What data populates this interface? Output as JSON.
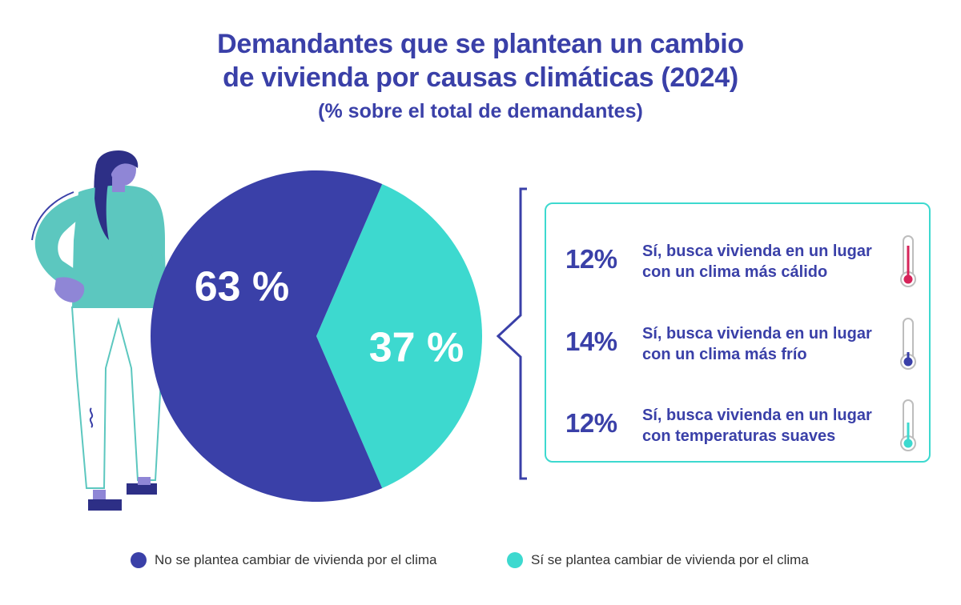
{
  "title_lines": [
    "Demandantes que se plantean un cambio",
    "de vivienda por causas climáticas (2024)"
  ],
  "subtitle": "(% sobre el total de demandantes)",
  "colors": {
    "title": "#3a40a8",
    "no": "#3a40a8",
    "si": "#3dd9cf",
    "warm": "#d6245a",
    "cold": "#3a40a8",
    "mild": "#3dd9cf"
  },
  "chart_data": {
    "type": "pie",
    "title": "Demandantes que se plantean un cambio de vivienda por causas climáticas (2024)",
    "subtitle": "(% sobre el total de demandantes)",
    "slices": [
      {
        "label": "No se plantea cambiar de vivienda por el clima",
        "value": 63,
        "display": "63 %",
        "color": "#3a40a8"
      },
      {
        "label": "Sí se plantea cambiar de vivienda por el clima",
        "value": 37,
        "display": "37 %",
        "color": "#3dd9cf"
      }
    ],
    "breakdown": [
      {
        "value": 12,
        "display": "12%",
        "lines": [
          "Sí, busca vivienda en un lugar",
          "con un clima más cálido"
        ],
        "icon": "thermometer-hot-icon"
      },
      {
        "value": 14,
        "display": "14%",
        "lines": [
          "Sí, busca vivienda en un lugar",
          "con un clima más frío"
        ],
        "icon": "thermometer-cold-icon"
      },
      {
        "value": 12,
        "display": "12%",
        "lines": [
          "Sí, busca vivienda en un lugar",
          "con temperaturas suaves"
        ],
        "icon": "thermometer-mild-icon"
      }
    ],
    "legend": [
      {
        "label": "No se plantea cambiar de vivienda por el clima",
        "color": "#3a40a8"
      },
      {
        "label": "Sí se plantea cambiar de vivienda por el clima",
        "color": "#3dd9cf"
      }
    ],
    "legend_position": "bottom"
  },
  "illustration": "woman-illustration-icon"
}
